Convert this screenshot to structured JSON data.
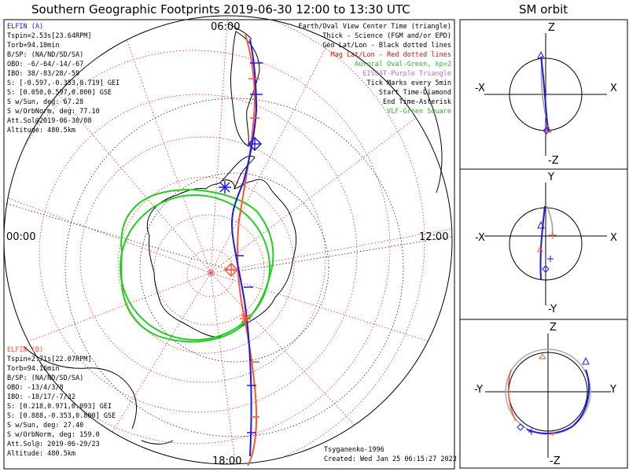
{
  "title": "Southern Geographic Footprints 2019-06-30 12:00 to 13:30 UTC",
  "orbit_title": "SM orbit",
  "time_labels": {
    "top": "06:00",
    "left": "00:00",
    "right": "12:00",
    "bottom": "18:00"
  },
  "elfin_a": {
    "name": "ELFIN (A)",
    "color": "#1a1ae6",
    "lines": [
      "Tspin=2.53s[23.64RPM]",
      "Torb=94.10min",
      "B/SP: (NA/ND/SD/SA)",
      "OBO: -6/-64/-14/-67",
      "IBO: 38/-83/28/-59",
      "S: [-0.597,-0.353,0.719] GEI",
      "S: [0.050,0.597,0.800] GSE",
      "S w/Sun, deg: 67.28",
      "S w/OrbNorm, deg: 77.10",
      "Att.Sol@2019-06-30/08",
      "Altitude: 480.5km"
    ]
  },
  "elfin_b": {
    "name": "ELFIN (B)",
    "color": "#ff5533",
    "lines": [
      "Tspin=2.71s[22.07RPM]",
      "Torb=94.16min",
      "B/SP: (NA/ND/SD/SA)",
      "OBO: -13/4/3/8",
      "IBO: -18/17/-7/32",
      "S: [0.218,0.971,0.093] GEI",
      "S: [0.888,-0.353,0.800] GSE",
      "S w/Sun, deg: 27.40",
      "S w/OrbNorm, deg: 159.0",
      "Att.Sol@: 2019-06-29/23",
      "Altitude: 480.5km"
    ]
  },
  "legend": [
    {
      "text": "Earth/Oval View Center Time (triangle)",
      "color": "#000000"
    },
    {
      "text": "Thick - Science (FGM and/or EPD)",
      "color": "#000000"
    },
    {
      "text": "Geo Lat/Lon - Black dotted lines",
      "color": "#000000"
    },
    {
      "text": "Mag Lat/Lon - Red dotted lines",
      "color": "#ff0000"
    },
    {
      "text": "Auroral Oval-Green, kp=2",
      "color": "#22bb22"
    },
    {
      "text": "EISCAT-Purple Triangle",
      "color": "#cc66cc"
    },
    {
      "text": "Tick Marks every 5min",
      "color": "#000000"
    },
    {
      "text": "Start Time-Diamond",
      "color": "#000000"
    },
    {
      "text": "End Time-Asterisk",
      "color": "#000000"
    },
    {
      "text": "VLF-Green Square",
      "color": "#22bb22"
    }
  ],
  "model": "Tsyganenko-1996",
  "created": "Created: Wed Jan 25 06:15:27 2023",
  "orbit_panels": [
    {
      "top": "Z",
      "bottom": "-Z",
      "left": "-X",
      "right": "X"
    },
    {
      "top": "Y",
      "bottom": "-Y",
      "left": "-X",
      "right": "X"
    },
    {
      "top": "Z",
      "bottom": "-Z",
      "left": "-Y",
      "right": "Y"
    }
  ],
  "colors": {
    "elfin_a": "#1a1ae6",
    "elfin_b": "#ff5533",
    "mag_grid": "#ff0000",
    "auroral_oval": "#22cc22",
    "eiscat": "#cc66cc"
  }
}
